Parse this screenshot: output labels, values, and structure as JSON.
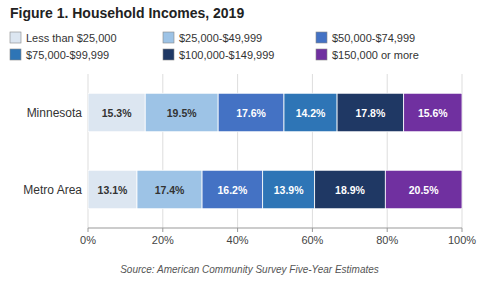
{
  "chart_data": {
    "type": "bar",
    "orientation": "horizontal",
    "stacked": true,
    "data_labels": true,
    "grid": true,
    "legend": "top",
    "title": "Figure 1. Household Incomes, 2019",
    "annotations": [
      "Source: American Community Survey Five-Year Estimates"
    ],
    "categories": [
      "Metro Area",
      "Minnesota"
    ],
    "series": [
      {
        "name": "Less than $25,000",
        "color": "#dce6f1",
        "values": [
          13.1,
          15.3
        ],
        "value_labels": [
          "13.1%",
          "15.3%"
        ]
      },
      {
        "name": "$25,000-$49,999",
        "color": "#9dc3e6",
        "values": [
          17.4,
          19.5
        ],
        "value_labels": [
          "17.4%",
          "19.5%"
        ]
      },
      {
        "name": "$50,000-$74,999",
        "color": "#4472c4",
        "values": [
          16.2,
          17.6
        ],
        "value_labels": [
          "16.2%",
          "17.6%"
        ]
      },
      {
        "name": "$75,000-$99,999",
        "color": "#2e75b6",
        "values": [
          13.9,
          14.2
        ],
        "value_labels": [
          "13.9%",
          "14.2%"
        ]
      },
      {
        "name": "$100,000-$149,999",
        "color": "#1f3864",
        "values": [
          18.9,
          17.8
        ],
        "value_labels": [
          "18.9%",
          "17.8%"
        ]
      },
      {
        "name": "$150,000 or more",
        "color": "#7030a0",
        "values": [
          20.5,
          15.6
        ],
        "value_labels": [
          "20.5%",
          "15.6%"
        ]
      }
    ],
    "xlim": [
      0,
      100
    ],
    "xticks": [
      {
        "value": 0,
        "label": "0%"
      },
      {
        "value": 20,
        "label": "20%"
      },
      {
        "value": 40,
        "label": "40%"
      },
      {
        "value": 60,
        "label": "60%"
      },
      {
        "value": 80,
        "label": "80%"
      },
      {
        "value": 100,
        "label": "100%"
      }
    ]
  }
}
